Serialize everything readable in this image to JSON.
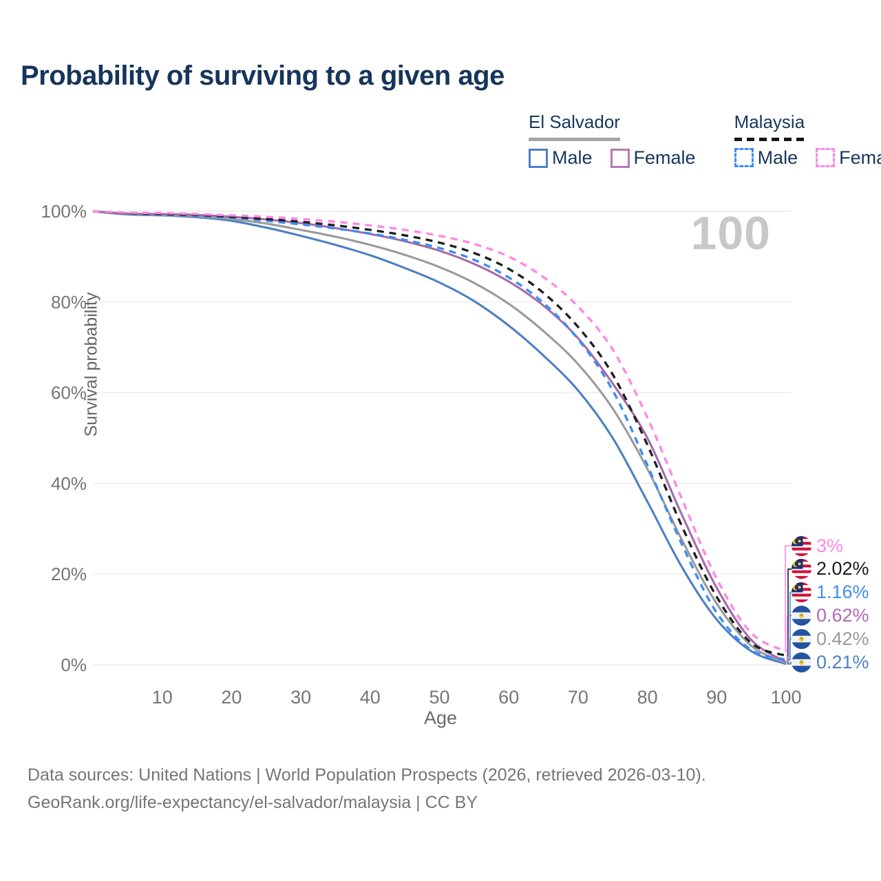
{
  "title": "Probability of surviving to a given age",
  "watermark": "100",
  "legend": {
    "groups": [
      {
        "label": "El Salvador",
        "line_style": "solid",
        "line_color": "#a3a3a3",
        "items": [
          {
            "label": "Male",
            "color": "#4d80c4",
            "dashed": false
          },
          {
            "label": "Female",
            "color": "#b877b4",
            "dashed": false
          }
        ]
      },
      {
        "label": "Malaysia",
        "line_style": "dashed",
        "line_color": "#141414",
        "items": [
          {
            "label": "Male",
            "color": "#3d8df5",
            "dashed": true
          },
          {
            "label": "Female",
            "color": "#ff87e6",
            "dashed": true
          }
        ]
      }
    ]
  },
  "chart_data": {
    "type": "line",
    "title": "Probability of surviving to a given age",
    "xlabel": "Age",
    "ylabel": "Survival probability",
    "xlim": [
      0,
      100
    ],
    "ylim": [
      0,
      100
    ],
    "grid": "horizontal",
    "x_ticks": [
      10,
      20,
      30,
      40,
      50,
      60,
      70,
      80,
      90,
      100
    ],
    "y_ticks": [
      {
        "v": 100,
        "label": "100%"
      },
      {
        "v": 80,
        "label": "80%"
      },
      {
        "v": 60,
        "label": "60%"
      },
      {
        "v": 40,
        "label": "40%"
      },
      {
        "v": 20,
        "label": "20%"
      },
      {
        "v": 0,
        "label": "0%"
      }
    ],
    "x": [
      0,
      5,
      10,
      15,
      20,
      25,
      30,
      35,
      40,
      45,
      50,
      55,
      60,
      65,
      70,
      75,
      80,
      85,
      90,
      95,
      100
    ],
    "series": [
      {
        "name": "El Salvador Male",
        "country": "El Salvador",
        "sex": "Male",
        "color": "#4d80c4",
        "dashed": false,
        "values": [
          100,
          99.3,
          99.1,
          98.7,
          97.9,
          96.4,
          94.6,
          92.6,
          90.3,
          87.5,
          84.3,
          80.2,
          74.8,
          68.2,
          60.5,
          50.0,
          36.0,
          21.5,
          10.0,
          3.0,
          0.21
        ]
      },
      {
        "name": "El Salvador Both sexes",
        "country": "El Salvador",
        "sex": "Both",
        "color": "#9a9a9a",
        "dashed": false,
        "values": [
          100,
          99.4,
          99.2,
          98.9,
          98.3,
          97.3,
          95.9,
          94.4,
          92.6,
          90.4,
          87.7,
          84.2,
          79.6,
          73.6,
          66.3,
          56.5,
          43.2,
          27.5,
          13.5,
          4.2,
          0.42
        ]
      },
      {
        "name": "El Salvador Female",
        "country": "El Salvador",
        "sex": "Female",
        "color": "#a56ba8",
        "dashed": false,
        "values": [
          100,
          99.5,
          99.4,
          99.2,
          98.8,
          98.2,
          97.4,
          96.3,
          95.0,
          93.4,
          91.3,
          88.4,
          84.5,
          79.2,
          72.0,
          62.0,
          50.0,
          33.0,
          17.0,
          5.5,
          0.62
        ]
      },
      {
        "name": "Malaysia Male",
        "country": "Malaysia",
        "sex": "Male",
        "color": "#3d8df5",
        "dashed": true,
        "values": [
          100,
          99.5,
          99.3,
          99.0,
          98.6,
          97.9,
          97.1,
          96.2,
          95.1,
          93.7,
          91.9,
          89.3,
          85.4,
          79.8,
          71.8,
          60.5,
          44.0,
          26.5,
          11.5,
          3.3,
          1.16
        ]
      },
      {
        "name": "Malaysia Both sexes",
        "country": "Malaysia",
        "sex": "Both",
        "color": "#1f1f1f",
        "dashed": true,
        "values": [
          100,
          99.6,
          99.4,
          99.2,
          98.8,
          98.3,
          97.7,
          96.9,
          95.9,
          94.7,
          93.1,
          90.8,
          87.3,
          82.0,
          74.5,
          64.0,
          48.5,
          30.5,
          15.0,
          4.8,
          2.02
        ]
      },
      {
        "name": "Malaysia Female",
        "country": "Malaysia",
        "sex": "Female",
        "color": "#ff87e6",
        "dashed": true,
        "values": [
          100,
          99.7,
          99.6,
          99.4,
          99.1,
          98.8,
          98.3,
          97.7,
          96.9,
          95.9,
          94.6,
          92.8,
          90.0,
          85.5,
          79.0,
          69.5,
          54.5,
          36.5,
          19.0,
          7.0,
          3.0
        ]
      }
    ]
  },
  "end_labels": [
    {
      "text": "3%",
      "color": "#ff87e6",
      "flag": "malaysia",
      "value": 3.0,
      "series": "Malaysia Female"
    },
    {
      "text": "2.02%",
      "color": "#1a1a1a",
      "flag": "malaysia",
      "value": 2.02,
      "series": "Malaysia Both sexes"
    },
    {
      "text": "1.16%",
      "color": "#3d8df5",
      "flag": "malaysia",
      "value": 1.16,
      "series": "Malaysia Male"
    },
    {
      "text": "0.62%",
      "color": "#b468b4",
      "flag": "el-salvador",
      "value": 0.62,
      "series": "El Salvador Female"
    },
    {
      "text": "0.42%",
      "color": "#9a9a9a",
      "flag": "el-salvador",
      "value": 0.42,
      "series": "El Salvador Both sexes"
    },
    {
      "text": "0.21%",
      "color": "#4d80c4",
      "flag": "el-salvador",
      "value": 0.21,
      "series": "El Salvador Male"
    }
  ],
  "footer": {
    "line1": "Data sources: United Nations | World Population Prospects (2026, retrieved 2026-03-10).",
    "line2": "GeoRank.org/life-expectancy/el-salvador/malaysia | CC BY"
  }
}
